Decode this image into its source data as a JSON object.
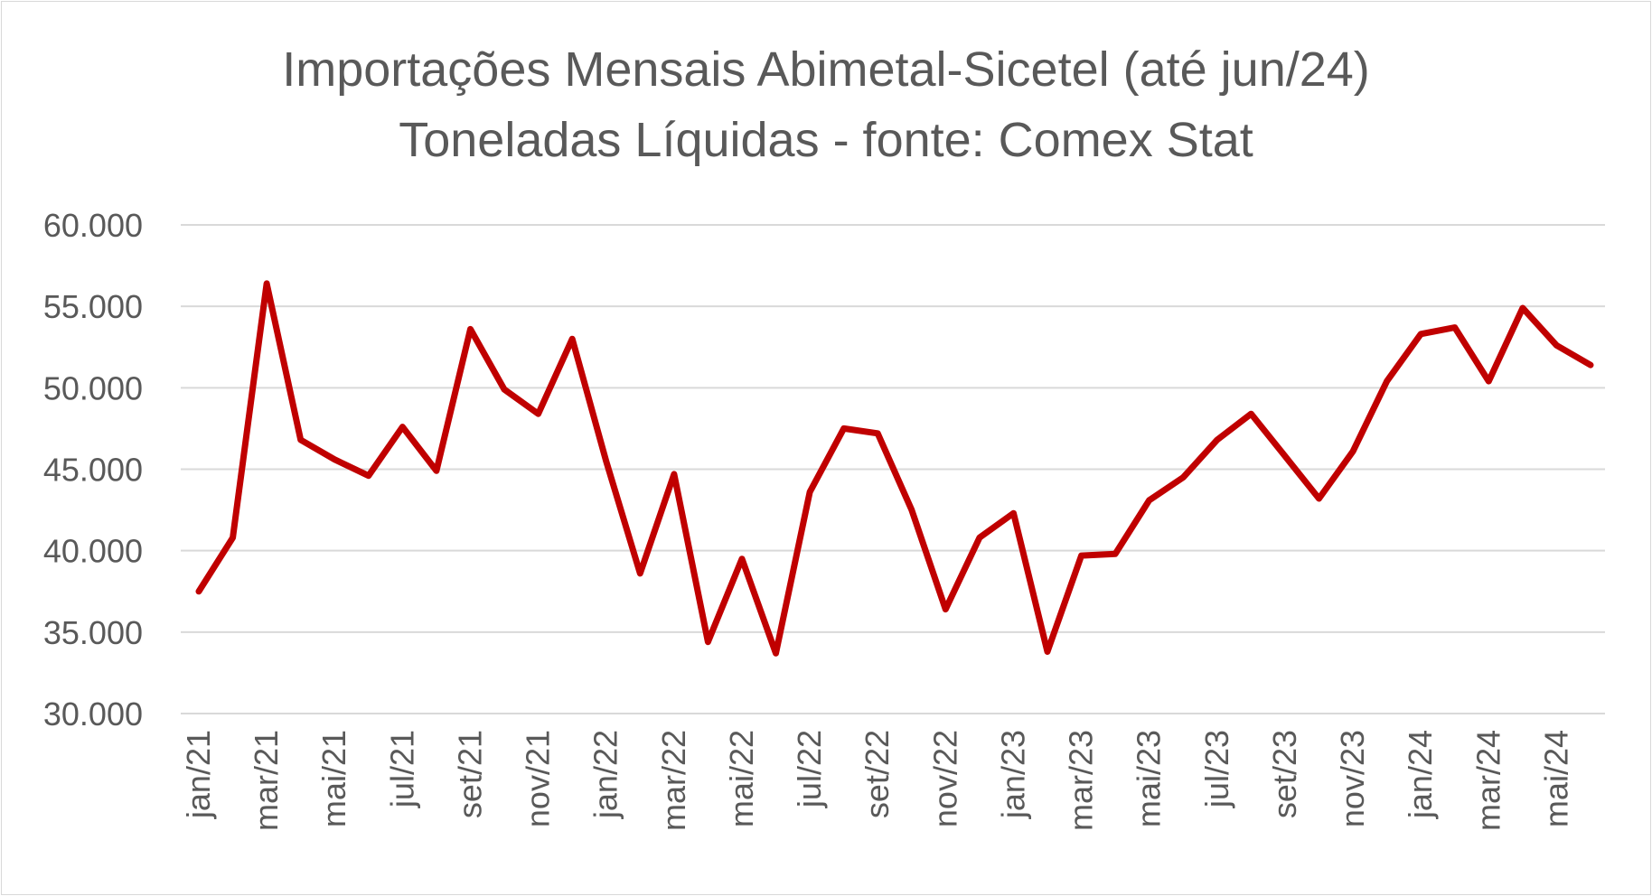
{
  "chart_data": {
    "type": "line",
    "title": "Importações Mensais Abimetal-Sicetel (até jun/24)",
    "subtitle": "Toneladas Líquidas - fonte: Comex Stat",
    "xlabel": "",
    "ylabel": "",
    "ylim": [
      30000,
      60000
    ],
    "y_ticks": [
      "30.000",
      "35.000",
      "40.000",
      "45.000",
      "50.000",
      "55.000",
      "60.000"
    ],
    "y_tick_values": [
      30000,
      35000,
      40000,
      45000,
      50000,
      55000,
      60000
    ],
    "grid": true,
    "legend": "none",
    "line_color": "#C00000",
    "grid_color": "#d9d9d9",
    "x": [
      "jan/21",
      "fev/21",
      "mar/21",
      "abr/21",
      "mai/21",
      "jun/21",
      "jul/21",
      "ago/21",
      "set/21",
      "out/21",
      "nov/21",
      "dez/21",
      "jan/22",
      "fev/22",
      "mar/22",
      "abr/22",
      "mai/22",
      "jun/22",
      "jul/22",
      "ago/22",
      "set/22",
      "out/22",
      "nov/22",
      "dez/22",
      "jan/23",
      "fev/23",
      "mar/23",
      "abr/23",
      "mai/23",
      "jun/23",
      "jul/23",
      "ago/23",
      "set/23",
      "out/23",
      "nov/23",
      "dez/23",
      "jan/24",
      "fev/24",
      "mar/24",
      "abr/24",
      "mai/24",
      "jun/24"
    ],
    "x_tick_labels": [
      "jan/21",
      "mar/21",
      "mai/21",
      "jul/21",
      "set/21",
      "nov/21",
      "jan/22",
      "mar/22",
      "mai/22",
      "jul/22",
      "set/22",
      "nov/22",
      "jan/23",
      "mar/23",
      "mai/23",
      "jul/23",
      "set/23",
      "nov/23",
      "jan/24",
      "mar/24",
      "mai/24"
    ],
    "values": [
      37500,
      40800,
      56400,
      46800,
      45600,
      44600,
      47600,
      44900,
      53600,
      49900,
      48400,
      53000,
      45500,
      38600,
      44700,
      34400,
      39500,
      33700,
      43600,
      47500,
      47200,
      42500,
      36400,
      40800,
      42300,
      33800,
      39700,
      39800,
      43100,
      44500,
      46800,
      48400,
      45800,
      43200,
      46100,
      50400,
      53300,
      53700,
      50400,
      54900,
      52600,
      51400
    ]
  }
}
